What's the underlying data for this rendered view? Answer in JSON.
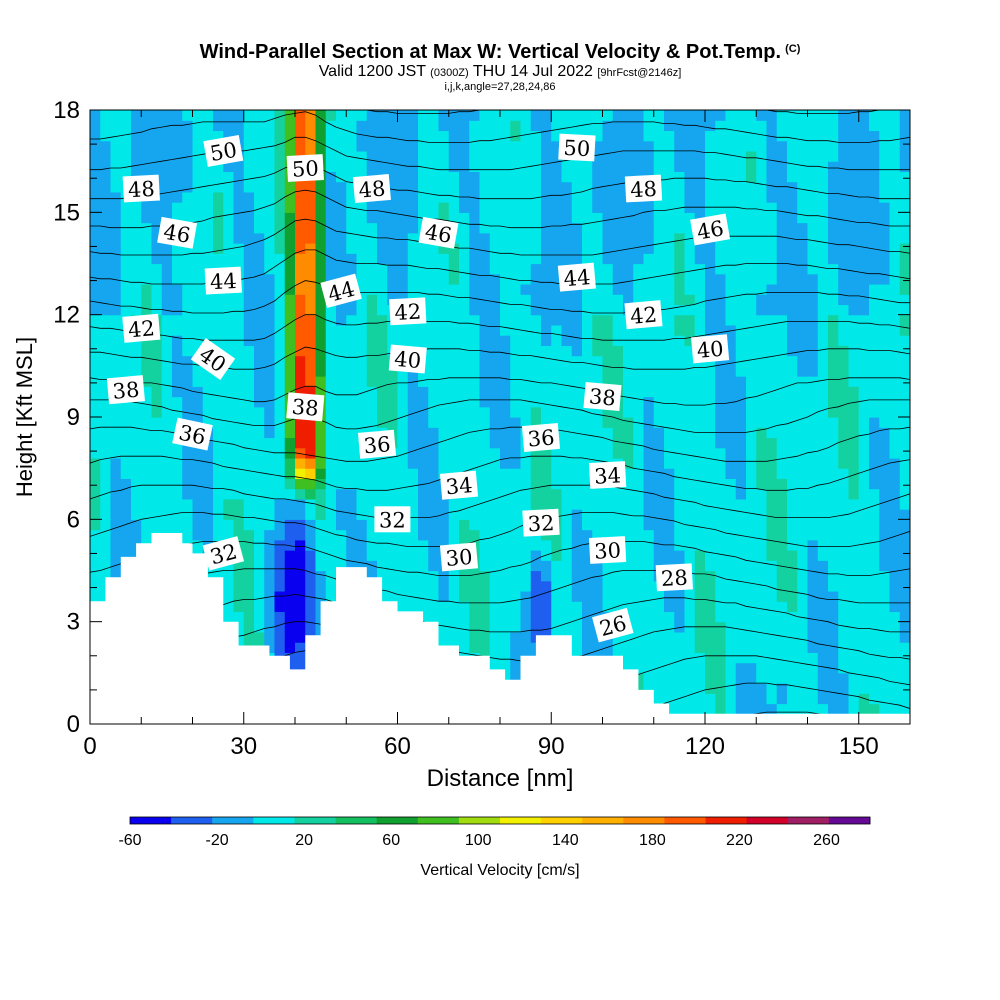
{
  "title": {
    "main": "Wind-Parallel Section at Max W: Vertical Velocity & Pot.Temp.",
    "copyright": "(C)",
    "valid_prefix": "Valid 1200 JST",
    "valid_utc": "(0300Z)",
    "valid_date": "THU 14 Jul 2022",
    "forecast": "[9hrFcst@2146z]",
    "params": "i,j,k,angle=27,28,24,86"
  },
  "chart_data": {
    "type": "heatmap",
    "xlabel": "Distance [nm]",
    "ylabel": "Height [Kft MSL]",
    "xlim": [
      0,
      160
    ],
    "ylim": [
      0,
      18
    ],
    "x_ticks": [
      0,
      30,
      60,
      90,
      120,
      150
    ],
    "y_ticks": [
      0,
      3,
      6,
      9,
      12,
      15,
      18
    ],
    "colorbar": {
      "label": "Vertical Velocity [cm/s]",
      "tick_labels": [
        -60,
        -20,
        20,
        60,
        100,
        140,
        180,
        220,
        260
      ],
      "bins": [
        -60,
        -40,
        -20,
        0,
        20,
        40,
        60,
        80,
        100,
        120,
        140,
        160,
        180,
        200,
        220,
        240,
        260,
        280
      ],
      "colors": [
        "#0a00f0",
        "#1e5ff0",
        "#16a6f0",
        "#00e8e8",
        "#14d2a0",
        "#12c060",
        "#10a030",
        "#40c020",
        "#a0dc10",
        "#f0f000",
        "#ffd000",
        "#ffb000",
        "#ff8c00",
        "#ff5a00",
        "#f01e00",
        "#d20028",
        "#a01e64",
        "#640a96"
      ]
    },
    "updraft_core": {
      "x": 42,
      "y_range": [
        8,
        18
      ],
      "peak_cm_s": 220
    },
    "downdrafts": [
      {
        "x": 40,
        "y": 4,
        "min_cm_s": -60
      },
      {
        "x": 88,
        "y": 3.5,
        "min_cm_s": -40
      }
    ],
    "terrain": [
      [
        0,
        3.6
      ],
      [
        3,
        3.6
      ],
      [
        3,
        4.3
      ],
      [
        6,
        4.3
      ],
      [
        6,
        4.9
      ],
      [
        9,
        4.9
      ],
      [
        9,
        5.3
      ],
      [
        12,
        5.3
      ],
      [
        12,
        5.6
      ],
      [
        18,
        5.6
      ],
      [
        18,
        5.3
      ],
      [
        20,
        5.3
      ],
      [
        20,
        5.0
      ],
      [
        23,
        5.0
      ],
      [
        23,
        4.3
      ],
      [
        26,
        4.3
      ],
      [
        26,
        3.0
      ],
      [
        29,
        3.0
      ],
      [
        29,
        2.3
      ],
      [
        35,
        2.3
      ],
      [
        35,
        2.0
      ],
      [
        39,
        2.0
      ],
      [
        39,
        1.6
      ],
      [
        42,
        1.6
      ],
      [
        42,
        2.6
      ],
      [
        45,
        2.6
      ],
      [
        45,
        3.6
      ],
      [
        48,
        3.6
      ],
      [
        48,
        4.6
      ],
      [
        54,
        4.6
      ],
      [
        54,
        4.3
      ],
      [
        57,
        4.3
      ],
      [
        57,
        3.6
      ],
      [
        60,
        3.6
      ],
      [
        60,
        3.3
      ],
      [
        65,
        3.3
      ],
      [
        65,
        3.0
      ],
      [
        68,
        3.0
      ],
      [
        68,
        2.3
      ],
      [
        72,
        2.3
      ],
      [
        72,
        2.0
      ],
      [
        78,
        2.0
      ],
      [
        78,
        1.6
      ],
      [
        81,
        1.6
      ],
      [
        81,
        1.3
      ],
      [
        84,
        1.3
      ],
      [
        84,
        2.0
      ],
      [
        87,
        2.0
      ],
      [
        87,
        2.6
      ],
      [
        94,
        2.6
      ],
      [
        94,
        2.0
      ],
      [
        104,
        2.0
      ],
      [
        104,
        1.6
      ],
      [
        107,
        1.6
      ],
      [
        107,
        1.0
      ],
      [
        110,
        1.0
      ],
      [
        110,
        0.6
      ],
      [
        113,
        0.6
      ],
      [
        113,
        0.3
      ],
      [
        160,
        0.3
      ],
      [
        160,
        0
      ],
      [
        0,
        0
      ]
    ],
    "isentrope_levels": [
      24,
      25,
      26,
      27,
      28,
      29,
      30,
      31,
      32,
      33,
      34,
      35,
      36,
      37,
      38,
      39,
      40,
      41,
      42,
      43,
      44,
      45,
      46,
      47,
      48,
      49,
      50,
      51
    ],
    "contour_labels": [
      {
        "text": "50",
        "x": 26,
        "y": 16.8,
        "angle": -10
      },
      {
        "text": "50",
        "x": 42,
        "y": 16.3,
        "angle": -3
      },
      {
        "text": "50",
        "x": 95,
        "y": 16.9,
        "angle": 3
      },
      {
        "text": "48",
        "x": 10,
        "y": 15.7,
        "angle": -3
      },
      {
        "text": "48",
        "x": 55,
        "y": 15.7,
        "angle": -5
      },
      {
        "text": "48",
        "x": 108,
        "y": 15.7,
        "angle": -3
      },
      {
        "text": "46",
        "x": 17,
        "y": 14.4,
        "angle": 10
      },
      {
        "text": "46",
        "x": 68,
        "y": 14.4,
        "angle": 10
      },
      {
        "text": "46",
        "x": 121,
        "y": 14.5,
        "angle": -10
      },
      {
        "text": "44",
        "x": 26,
        "y": 13.0,
        "angle": -3
      },
      {
        "text": "44",
        "x": 49,
        "y": 12.7,
        "angle": -15
      },
      {
        "text": "44",
        "x": 95,
        "y": 13.1,
        "angle": -5
      },
      {
        "text": "42",
        "x": 10,
        "y": 11.6,
        "angle": -5
      },
      {
        "text": "42",
        "x": 62,
        "y": 12.1,
        "angle": -3
      },
      {
        "text": "42",
        "x": 108,
        "y": 12.0,
        "angle": -5
      },
      {
        "text": "40",
        "x": 24,
        "y": 10.7,
        "angle": 35
      },
      {
        "text": "40",
        "x": 62,
        "y": 10.7,
        "angle": 5
      },
      {
        "text": "40",
        "x": 121,
        "y": 11.0,
        "angle": -5
      },
      {
        "text": "38",
        "x": 7,
        "y": 9.8,
        "angle": -5
      },
      {
        "text": "38",
        "x": 42,
        "y": 9.3,
        "angle": 5
      },
      {
        "text": "38",
        "x": 100,
        "y": 9.6,
        "angle": 5
      },
      {
        "text": "36",
        "x": 20,
        "y": 8.5,
        "angle": 12
      },
      {
        "text": "36",
        "x": 56,
        "y": 8.2,
        "angle": -5
      },
      {
        "text": "36",
        "x": 88,
        "y": 8.4,
        "angle": -5
      },
      {
        "text": "34",
        "x": 72,
        "y": 7.0,
        "angle": -5
      },
      {
        "text": "34",
        "x": 101,
        "y": 7.3,
        "angle": -3
      },
      {
        "text": "32",
        "x": 59,
        "y": 6.0,
        "angle": 0
      },
      {
        "text": "32",
        "x": 88,
        "y": 5.9,
        "angle": -3
      },
      {
        "text": "32",
        "x": 26,
        "y": 5.0,
        "angle": -15
      },
      {
        "text": "30",
        "x": 72,
        "y": 4.9,
        "angle": -5
      },
      {
        "text": "30",
        "x": 101,
        "y": 5.1,
        "angle": -3
      },
      {
        "text": "28",
        "x": 114,
        "y": 4.3,
        "angle": -3
      },
      {
        "text": "26",
        "x": 102,
        "y": 2.9,
        "angle": -15
      }
    ]
  }
}
